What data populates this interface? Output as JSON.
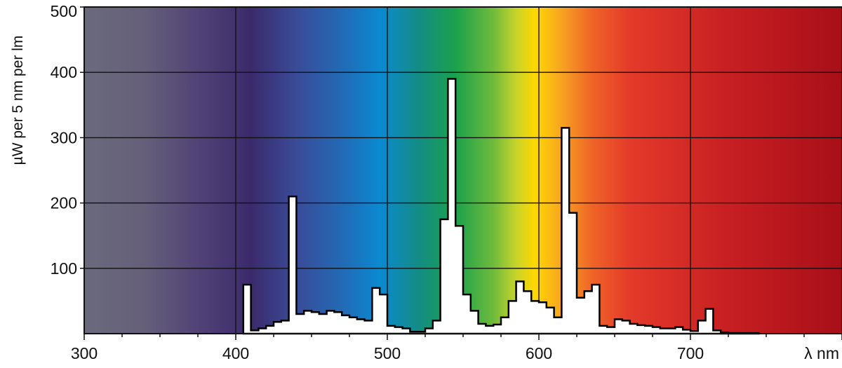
{
  "chart_data": {
    "type": "area",
    "title": "",
    "xlabel": "λ nm",
    "ylabel": "µW per 5 nm per lm",
    "xlim": [
      300,
      800
    ],
    "ylim": [
      0,
      500
    ],
    "x_ticks": [
      300,
      400,
      500,
      600,
      700
    ],
    "x_tick_labels": [
      "300",
      "400",
      "500",
      "600",
      "700"
    ],
    "y_ticks": [
      100,
      200,
      300,
      400,
      500
    ],
    "y_tick_labels": [
      "100",
      "200",
      "300",
      "400",
      "500"
    ],
    "grid": true,
    "background": "visible-spectrum color gradient",
    "series": [
      {
        "fill": "#ffffff",
        "stroke": "#000000",
        "step_width": 5,
        "x": [
          405,
          410,
          415,
          420,
          425,
          430,
          435,
          440,
          445,
          450,
          455,
          460,
          465,
          470,
          475,
          480,
          485,
          490,
          495,
          500,
          505,
          510,
          515,
          520,
          525,
          530,
          535,
          540,
          545,
          550,
          555,
          560,
          565,
          570,
          575,
          580,
          585,
          590,
          595,
          600,
          605,
          610,
          615,
          620,
          625,
          630,
          635,
          640,
          645,
          650,
          655,
          660,
          665,
          670,
          675,
          680,
          685,
          690,
          695,
          700,
          705,
          710,
          715,
          720,
          725,
          730,
          735,
          740
        ],
        "values": [
          75,
          5,
          8,
          12,
          18,
          20,
          210,
          30,
          35,
          33,
          30,
          35,
          33,
          28,
          25,
          22,
          20,
          70,
          60,
          12,
          10,
          8,
          3,
          3,
          8,
          20,
          175,
          390,
          165,
          60,
          35,
          15,
          12,
          14,
          25,
          50,
          80,
          65,
          50,
          48,
          40,
          25,
          315,
          185,
          55,
          65,
          75,
          12,
          10,
          22,
          20,
          15,
          13,
          12,
          10,
          8,
          8,
          10,
          6,
          4,
          20,
          38,
          5,
          2,
          1,
          1,
          1,
          1
        ]
      }
    ]
  }
}
